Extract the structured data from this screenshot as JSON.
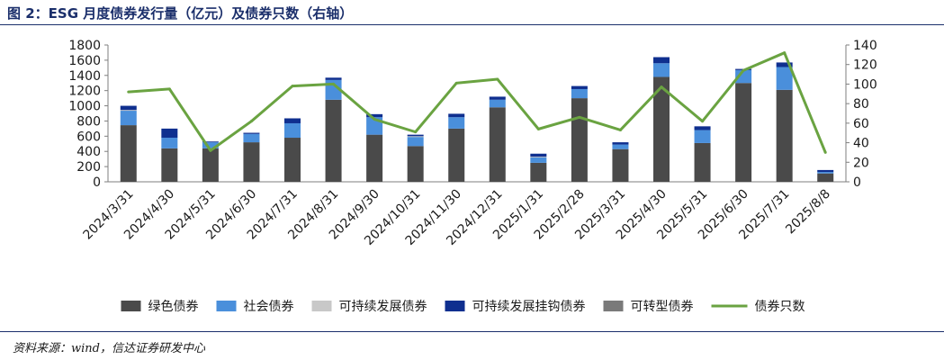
{
  "figure_title": "图 2：ESG 月度债券发行量（亿元）及债券只数（右轴）",
  "source_note": "资料来源：wind，信达证券研发中心",
  "chart_data": {
    "type": "bar",
    "categories": [
      "2024/3/31",
      "2024/4/30",
      "2024/5/31",
      "2024/6/30",
      "2024/7/31",
      "2024/8/31",
      "2024/9/30",
      "2024/10/31",
      "2024/11/30",
      "2024/12/31",
      "2025/1/31",
      "2025/2/28",
      "2025/3/31",
      "2025/4/30",
      "2025/5/31",
      "2025/6/30",
      "2025/7/31",
      "2025/8/8"
    ],
    "stacked": true,
    "series": [
      {
        "name": "绿色债券",
        "color": "#4a4a4a",
        "axis": "left",
        "values": [
          745,
          440,
          440,
          520,
          580,
          1080,
          620,
          470,
          700,
          980,
          250,
          1100,
          430,
          1380,
          510,
          1300,
          1210,
          110
        ]
      },
      {
        "name": "社会债券",
        "color": "#4a8fdb",
        "axis": "left",
        "values": [
          190,
          140,
          80,
          110,
          190,
          260,
          230,
          120,
          150,
          100,
          70,
          120,
          60,
          180,
          170,
          170,
          300,
          20
        ]
      },
      {
        "name": "可持续发展债券",
        "color": "#c8c8c8",
        "axis": "left",
        "values": [
          10,
          0,
          0,
          0,
          0,
          0,
          0,
          10,
          0,
          0,
          10,
          0,
          0,
          0,
          0,
          0,
          0,
          0
        ]
      },
      {
        "name": "可持续发展挂钩债券",
        "color": "#0f2f8f",
        "axis": "left",
        "values": [
          55,
          120,
          10,
          15,
          65,
          30,
          40,
          20,
          45,
          40,
          40,
          40,
          30,
          80,
          50,
          15,
          60,
          25
        ]
      },
      {
        "name": "可转型债券",
        "color": "#7a7a7a",
        "axis": "left",
        "values": [
          0,
          0,
          0,
          0,
          0,
          0,
          0,
          0,
          0,
          0,
          0,
          0,
          0,
          0,
          0,
          0,
          0,
          0
        ]
      },
      {
        "name": "债券只数",
        "type": "line",
        "color": "#6aa341",
        "axis": "right",
        "values": [
          92,
          95,
          32,
          62,
          98,
          100,
          64,
          51,
          101,
          105,
          54,
          66,
          53,
          97,
          62,
          114,
          132,
          30
        ]
      }
    ],
    "y_left": {
      "min": 0,
      "max": 1800,
      "ticks": [
        "0",
        "200",
        "400",
        "600",
        "800",
        "1000",
        "1200",
        "1400",
        "1600",
        "1800"
      ]
    },
    "y_right": {
      "min": 0,
      "max": 140,
      "ticks": [
        "0",
        "20",
        "40",
        "60",
        "80",
        "100",
        "120",
        "140"
      ]
    },
    "legend_position": "bottom",
    "grid": false
  }
}
